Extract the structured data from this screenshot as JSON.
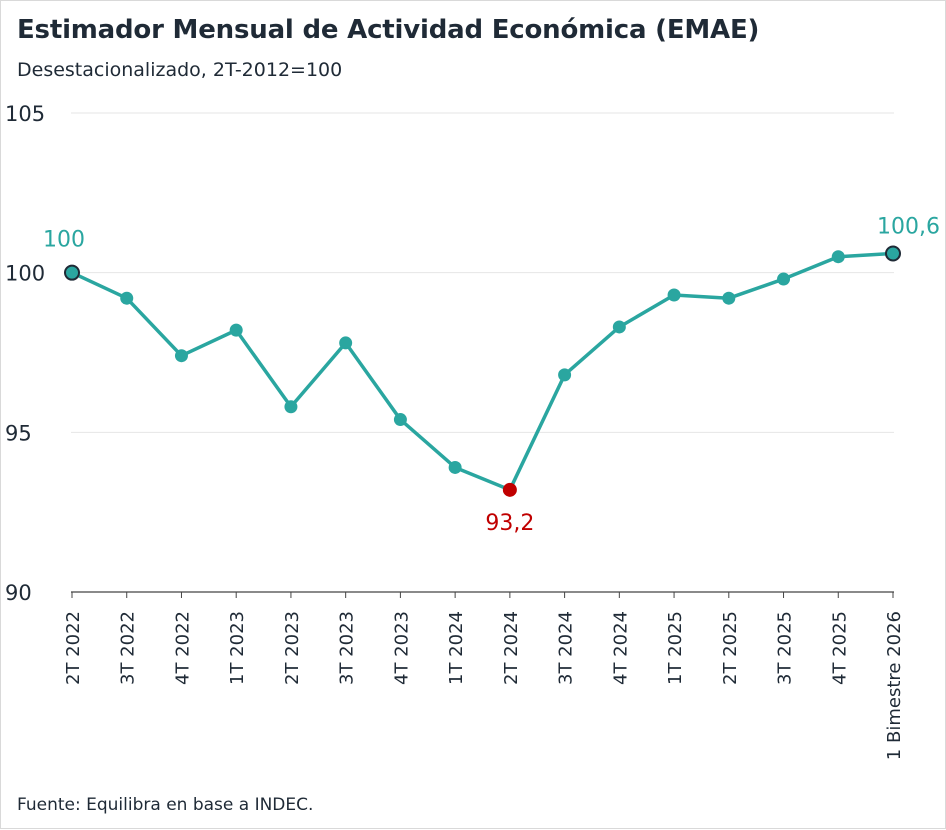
{
  "title": "Estimador Mensual de Actividad Económica (EMAE)",
  "subtitle": "Desestacionalizado, 2T-2012=100",
  "source": "Fuente: Equilibra en base a INDEC.",
  "colors": {
    "line": "#2aa6a0",
    "highlight": "#c00000",
    "endpoint_fill": "#2aa6a0",
    "endpoint_stroke": "#1f2a36"
  },
  "chart_data": {
    "type": "line",
    "categories": [
      "2T 2022",
      "3T 2022",
      "4T 2022",
      "1T 2023",
      "2T 2023",
      "3T 2023",
      "4T 2023",
      "1T 2024",
      "2T 2024",
      "3T 2024",
      "4T 2024",
      "1T 2025",
      "2T 2025",
      "3T 2025",
      "4T 2025",
      "1 Bimestre 2026"
    ],
    "series": [
      {
        "values": [
          100,
          99.2,
          97.4,
          98.2,
          95.8,
          97.8,
          95.4,
          93.9,
          93.2,
          96.8,
          98.3,
          99.3,
          99.2,
          99.8,
          100.5,
          100.6
        ]
      }
    ],
    "ylim": [
      90,
      105
    ],
    "yticks": [
      "90",
      "95",
      "100",
      "105"
    ],
    "ytick_values": [
      90,
      95,
      100,
      105
    ],
    "grid": true,
    "annotations": [
      {
        "label": "100",
        "index": 0
      },
      {
        "label": "93,2",
        "index": 8
      },
      {
        "label": "100,6",
        "index": 15
      }
    ]
  }
}
